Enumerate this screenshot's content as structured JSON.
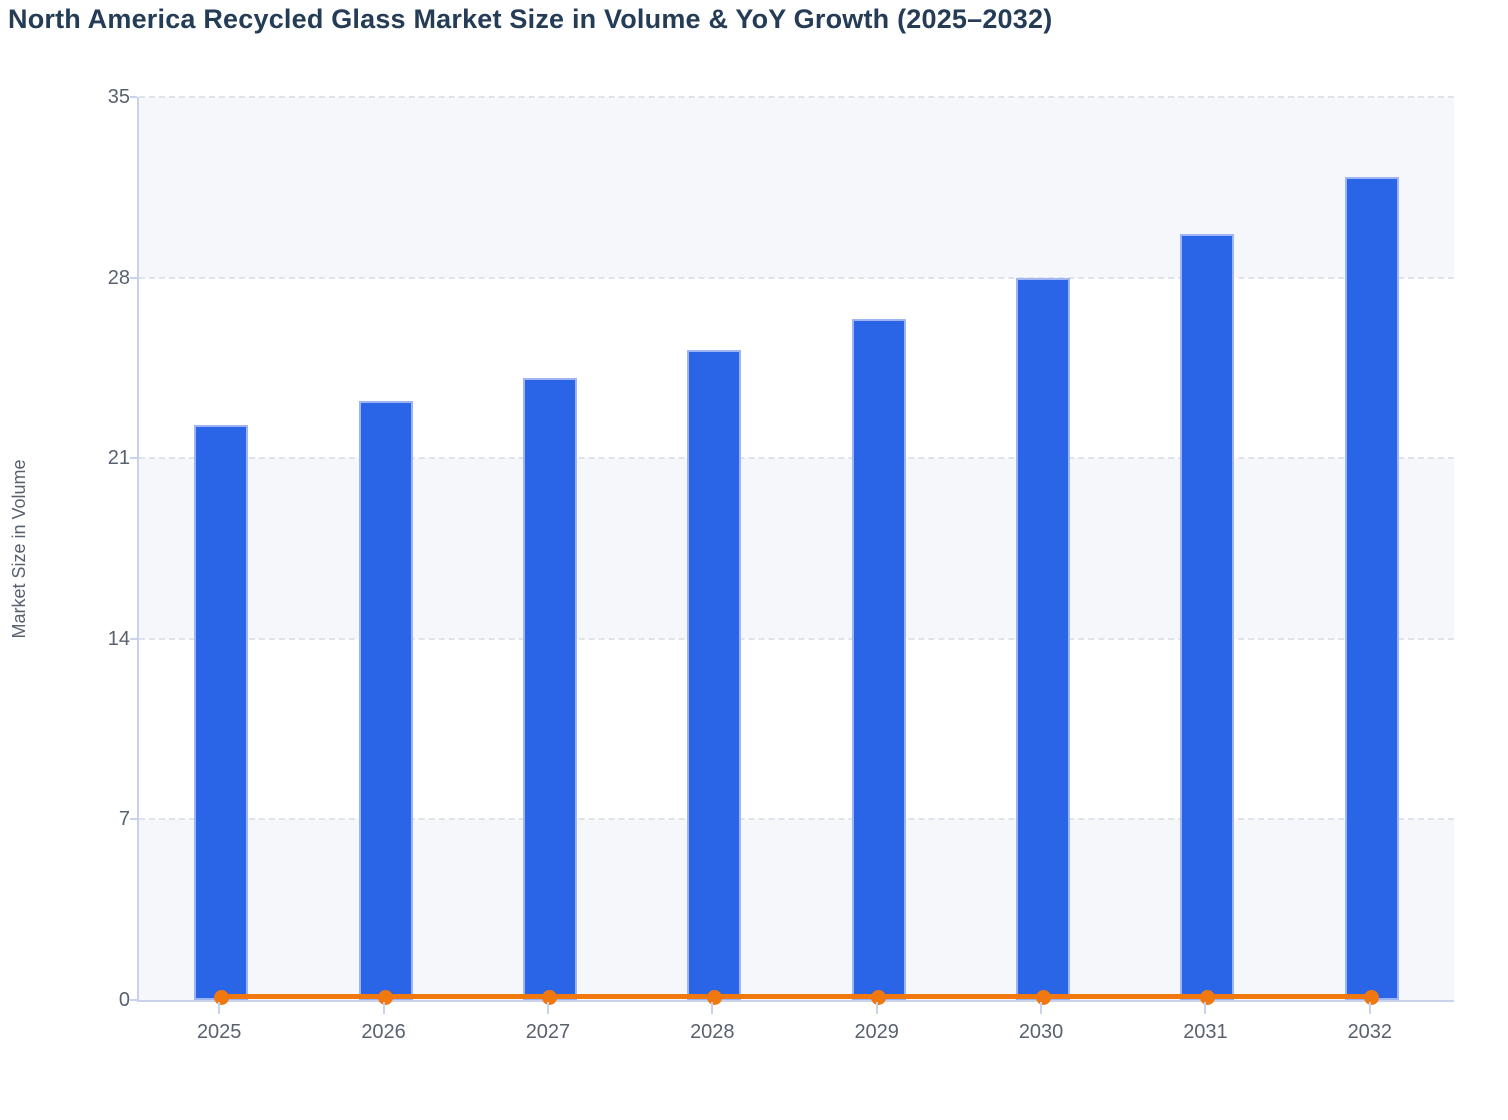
{
  "title": "North America Recycled Glass Market Size in Volume & YoY Growth (2025–2032)",
  "chart_data": {
    "type": "bar",
    "title": "North America Recycled Glass Market Size in Volume & YoY Growth (2025–2032)",
    "xlabel": "",
    "ylabel": "Market Size in Volume",
    "categories": [
      "2025",
      "2026",
      "2027",
      "2028",
      "2029",
      "2030",
      "2031",
      "2032"
    ],
    "series": [
      {
        "name": "Market Size in Volume",
        "type": "bar",
        "color": "#2a65e8",
        "values": [
          22.3,
          23.2,
          24.1,
          25.2,
          26.4,
          28.0,
          29.7,
          31.9
        ]
      },
      {
        "name": "YoY Growth",
        "type": "line",
        "color": "#f1770f",
        "values": [
          0.05,
          0.05,
          0.05,
          0.05,
          0.05,
          0.05,
          0.05,
          0.05
        ],
        "note": "line renders flat at ~0 on the volume axis; growth values are not labeled in the image"
      }
    ],
    "ylim": [
      0,
      35
    ],
    "yticks": [
      0,
      7,
      14,
      21,
      28,
      35
    ],
    "grid": "horizontal dashed gridlines at each y tick",
    "row_bands": "alternating light bands for ranges 0-7, 14-21, 28-35",
    "legend": "none",
    "data_labels": "none"
  },
  "colors": {
    "title_text": "#253c57",
    "axis_text": "#59616f",
    "bar_fill": "#2a65e8",
    "bar_border": "#9fb4f2",
    "line_orange": "#f1770f",
    "axis_line": "#c9d1ed",
    "gridline": "#e0e3e9",
    "band_fill": "#f5f7fa",
    "background": "#ffffff"
  }
}
